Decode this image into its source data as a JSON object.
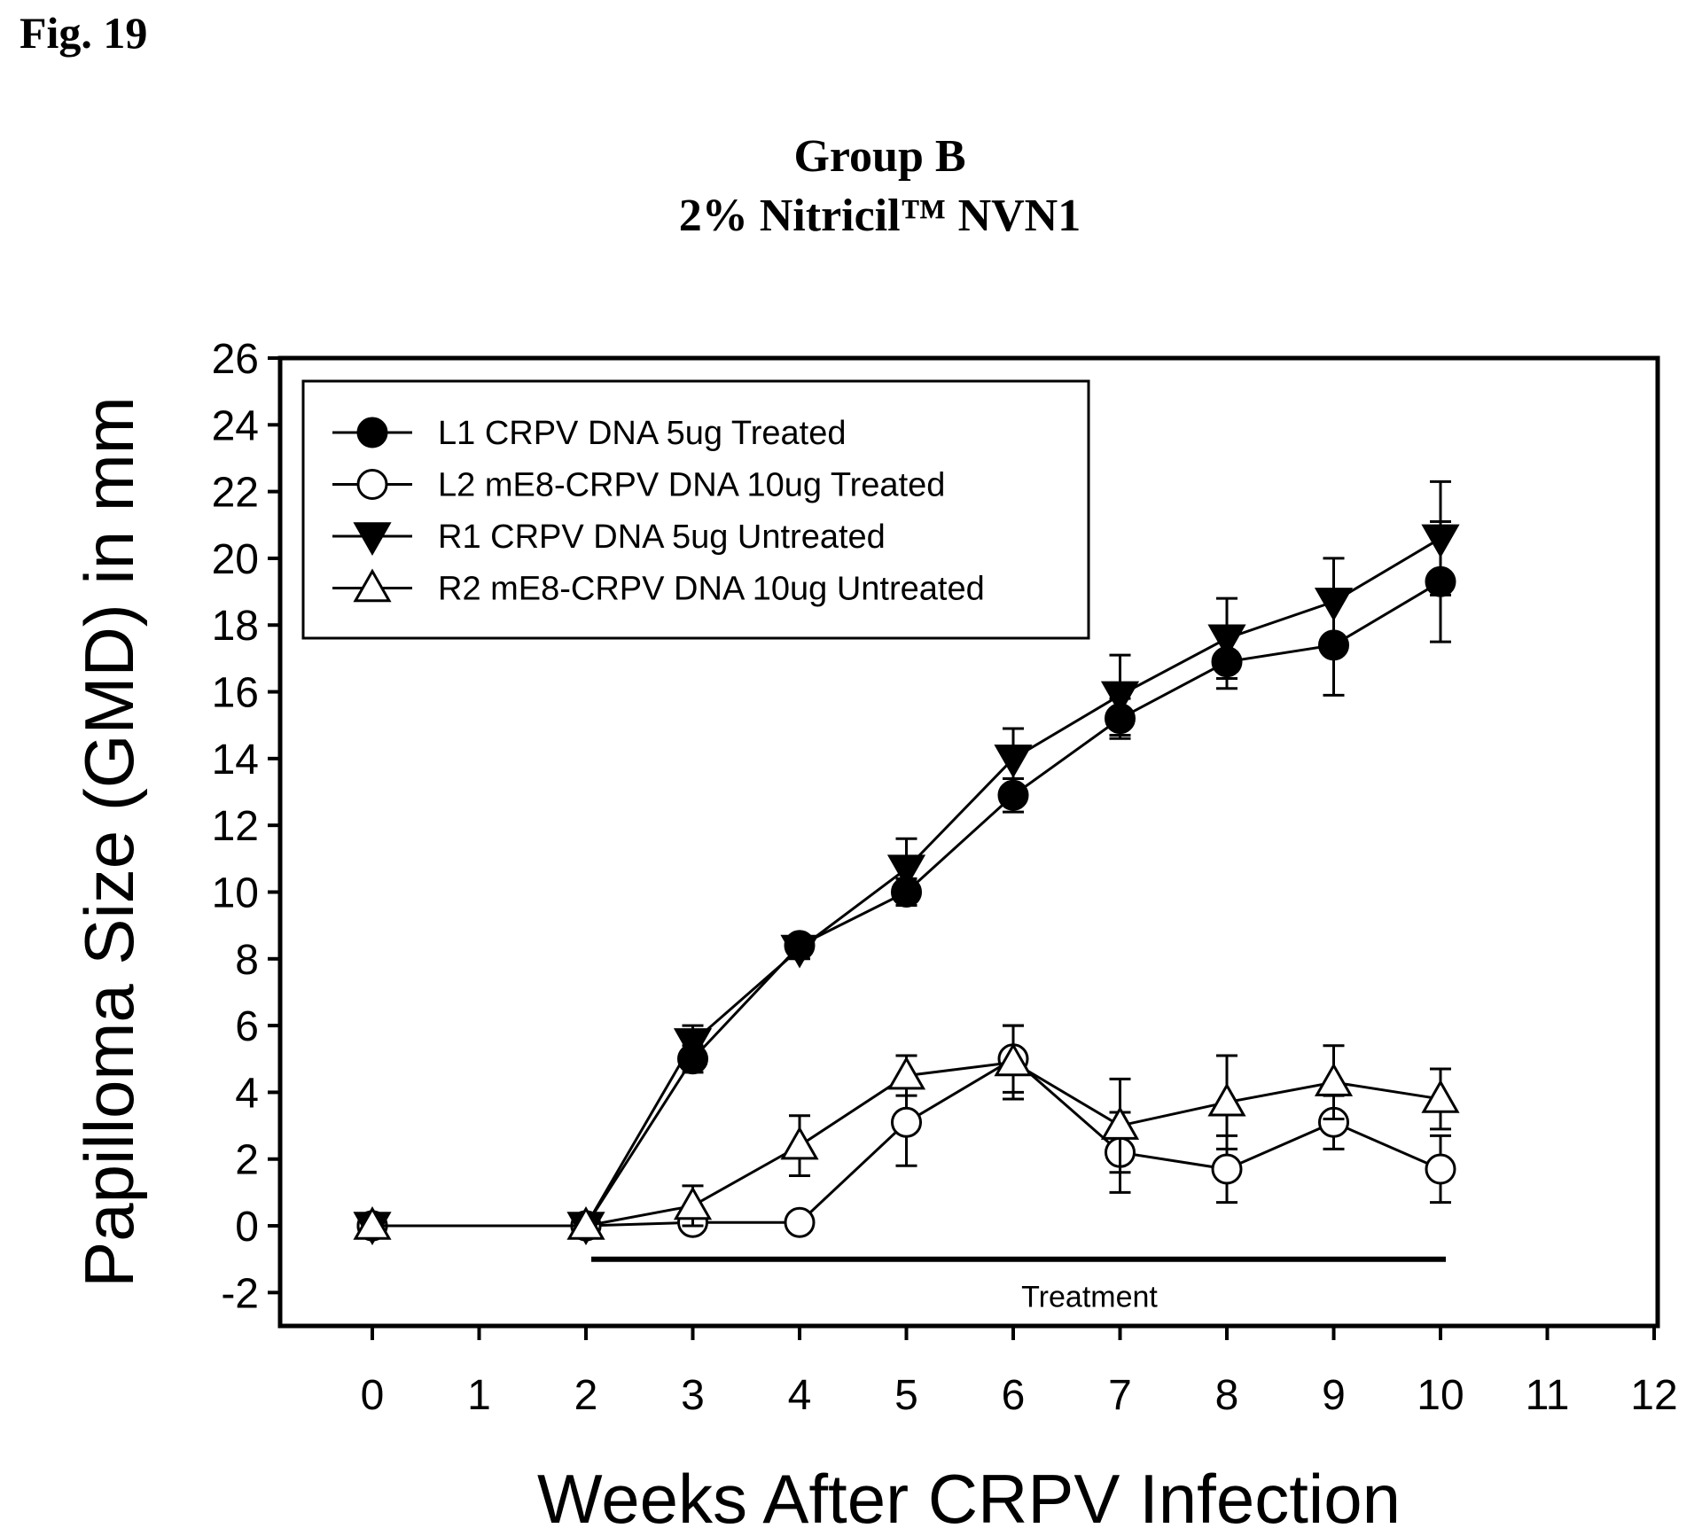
{
  "figure_label": "Fig. 19",
  "chart_data": {
    "type": "line",
    "title": "Group B",
    "subtitle": "2% Nitricil™ NVN1",
    "xlabel": "Weeks After CRPV Infection",
    "ylabel": "Papilloma Size (GMD) in mm",
    "xlim": [
      -0.9,
      12
    ],
    "ylim": [
      -3,
      26
    ],
    "xticks": [
      0,
      1,
      2,
      3,
      4,
      5,
      6,
      7,
      8,
      9,
      10,
      11,
      12
    ],
    "yticks": [
      -2,
      0,
      2,
      4,
      6,
      8,
      10,
      12,
      14,
      16,
      18,
      20,
      22,
      24,
      26
    ],
    "legend_position": "top-left",
    "grid": false,
    "series": [
      {
        "name": "L1 CRPV DNA 5ug Treated",
        "marker": "filled-circle",
        "x": [
          0,
          2,
          3,
          4,
          5,
          6,
          7,
          8,
          9,
          10
        ],
        "y": [
          0,
          0,
          5.0,
          8.4,
          10.0,
          12.9,
          15.2,
          16.9,
          17.4,
          19.3
        ],
        "error": [
          0,
          0,
          0.4,
          0.3,
          0.4,
          0.5,
          0.6,
          0.8,
          1.5,
          1.8
        ]
      },
      {
        "name": "L2 mE8-CRPV DNA 10ug Treated",
        "marker": "open-circle",
        "x": [
          0,
          2,
          3,
          4,
          5,
          6,
          7,
          8,
          9,
          10
        ],
        "y": [
          0,
          0,
          0.1,
          0.1,
          3.1,
          5.0,
          2.2,
          1.7,
          3.1,
          1.7
        ],
        "error": [
          0,
          0,
          0,
          0,
          1.3,
          1.0,
          1.2,
          1.0,
          0.8,
          1.0
        ]
      },
      {
        "name": "R1 CRPV DNA 5ug Untreated",
        "marker": "filled-triangle-down",
        "x": [
          0,
          2,
          3,
          4,
          5,
          6,
          7,
          8,
          9,
          10
        ],
        "y": [
          0,
          0,
          5.5,
          8.3,
          10.7,
          14.0,
          15.9,
          17.6,
          18.7,
          20.6
        ],
        "error": [
          0,
          0,
          0.5,
          0.3,
          0.9,
          0.9,
          1.2,
          1.2,
          1.3,
          1.7
        ]
      },
      {
        "name": "R2 mE8-CRPV DNA 10ug Untreated",
        "marker": "open-triangle-up",
        "x": [
          0,
          2,
          3,
          4,
          5,
          6,
          7,
          8,
          9,
          10
        ],
        "y": [
          0,
          0,
          0.6,
          2.4,
          4.5,
          4.9,
          3.0,
          3.7,
          4.3,
          3.8
        ],
        "error": [
          0,
          0,
          0.6,
          0.9,
          0.6,
          1.1,
          1.4,
          1.4,
          1.1,
          0.9
        ]
      }
    ],
    "annotations": [
      {
        "text": "Treatment",
        "x_start": 2.05,
        "x_end": 10.05,
        "y": -1.0
      }
    ]
  }
}
